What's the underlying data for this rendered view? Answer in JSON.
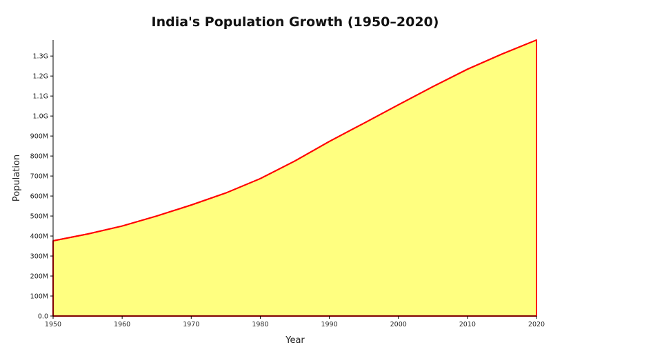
{
  "chart_data": {
    "type": "area",
    "title": "India's Population Growth (1950–2020)",
    "xlabel": "Year",
    "ylabel": "Population",
    "x": [
      1950,
      1955,
      1960,
      1965,
      1970,
      1975,
      1980,
      1985,
      1990,
      1995,
      2000,
      2005,
      2010,
      2015,
      2020
    ],
    "series": [
      {
        "values": [
          376000000,
          410000000,
          450000000,
          500000000,
          555000000,
          615000000,
          687000000,
          775000000,
          873000000,
          964000000,
          1056000000,
          1147000000,
          1234000000,
          1310000000,
          1380000000
        ]
      }
    ],
    "xticks": [
      1950,
      1960,
      1970,
      1980,
      1990,
      2000,
      2010,
      2020
    ],
    "xtick_labels": [
      "1950",
      "1960",
      "1970",
      "1980",
      "1990",
      "2000",
      "2010",
      "2020"
    ],
    "yticks": [
      0,
      100000000,
      200000000,
      300000000,
      400000000,
      500000000,
      600000000,
      700000000,
      800000000,
      900000000,
      1000000000,
      1100000000,
      1200000000,
      1300000000
    ],
    "ytick_labels": [
      "0.0",
      "100M",
      "200M",
      "300M",
      "400M",
      "500M",
      "600M",
      "700M",
      "800M",
      "900M",
      "1.0G",
      "1.1G",
      "1.2G",
      "1.3G"
    ],
    "xlim": [
      1950,
      2020
    ],
    "ylim": [
      0,
      1380000000
    ],
    "grid": false,
    "legend": false,
    "fill_color": "#ffff80",
    "line_color": "#ff0000"
  }
}
